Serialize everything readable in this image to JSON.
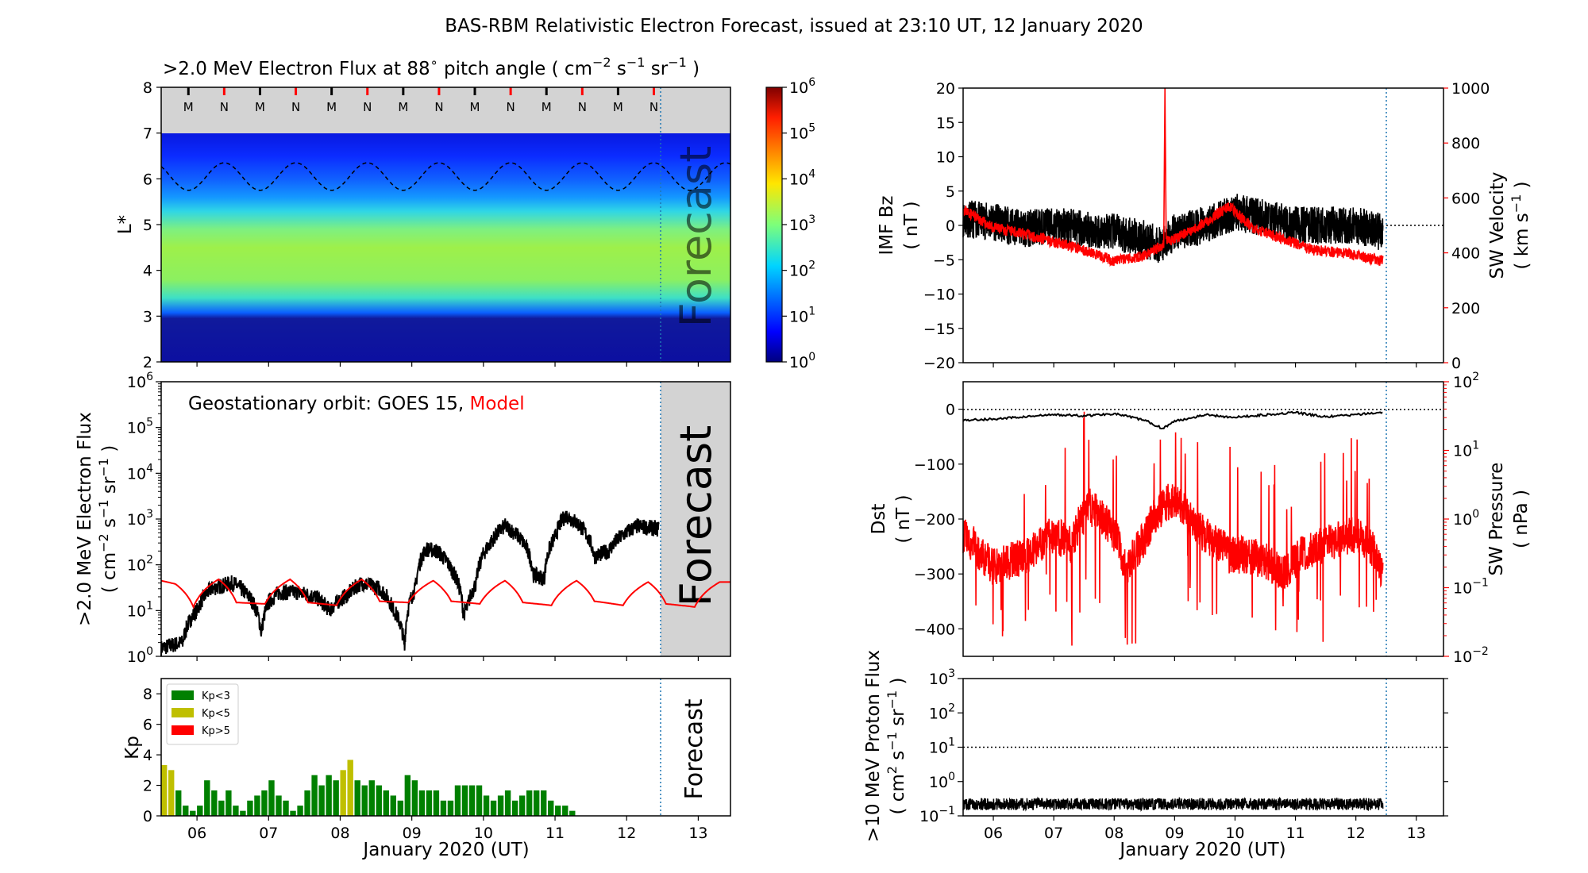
{
  "title": "BAS-RBM Relativistic Electron Forecast, issued at 23:10 UT, 12 January 2020",
  "colors": {
    "red": "#ff0000",
    "black": "#000000",
    "green": "#008000",
    "olive": "#bfbf00",
    "grey": "#d3d3d3",
    "forecast_line": "#1f77b4"
  },
  "x_axis": {
    "day_ticks": [
      "06",
      "07",
      "08",
      "09",
      "10",
      "11",
      "12",
      "13"
    ],
    "xlabel": "January 2020 (UT)",
    "range_days": [
      5.5,
      13.45
    ],
    "forecast_start_day": 12.47
  },
  "chart_data": [
    {
      "type": "heatmap",
      "name": "flux-map",
      "title_prefix": ">2.0 MeV Electron Flux at 88",
      "title_deg": "∘",
      "title_mid": " pitch angle ( cm",
      "title_units": [
        [
          "−2",
          " s"
        ],
        [
          "−1",
          " sr"
        ],
        [
          "−1",
          " )"
        ]
      ],
      "ylabel": "L*",
      "ylim": [
        2,
        8
      ],
      "y_ticks": [
        "2",
        "3",
        "4",
        "5",
        "6",
        "7",
        "8"
      ],
      "colorbar": {
        "scale": "log",
        "range_exp": [
          0,
          6
        ],
        "tick_base": "10",
        "tick_exps": [
          "0",
          "1",
          "2",
          "3",
          "4",
          "5",
          "6"
        ]
      },
      "markers": [
        {
          "day": 5.88,
          "label": "M",
          "color": "black"
        },
        {
          "day": 6.38,
          "label": "N",
          "color": "red"
        },
        {
          "day": 6.88,
          "label": "M",
          "color": "black"
        },
        {
          "day": 7.38,
          "label": "N",
          "color": "red"
        },
        {
          "day": 7.88,
          "label": "M",
          "color": "black"
        },
        {
          "day": 8.38,
          "label": "N",
          "color": "red"
        },
        {
          "day": 8.88,
          "label": "M",
          "color": "black"
        },
        {
          "day": 9.38,
          "label": "N",
          "color": "red"
        },
        {
          "day": 9.88,
          "label": "M",
          "color": "black"
        },
        {
          "day": 10.38,
          "label": "N",
          "color": "red"
        },
        {
          "day": 10.88,
          "label": "M",
          "color": "black"
        },
        {
          "day": 11.38,
          "label": "N",
          "color": "red"
        },
        {
          "day": 11.88,
          "label": "M",
          "color": "black"
        },
        {
          "day": 12.38,
          "label": "N",
          "color": "red"
        }
      ],
      "geo_Lstar_mean": 6.05,
      "geo_Lstar_amplitude": 0.3,
      "outer_belt_edges_L": [
        3.2,
        5.6
      ],
      "grey_region_above_L": 7,
      "forecast_label": "Forecast"
    },
    {
      "type": "line",
      "name": "geo-flux",
      "legend_prefix": "Geostationary orbit:   GOES 15,  ",
      "legend_model": "Model",
      "ylabel_line1": ">2.0 MeV Electron Flux",
      "ylabel_line2_parts": [
        "( cm",
        "−2",
        " s",
        "−1",
        " sr",
        "−1",
        " )"
      ],
      "yscale": "log",
      "ylim_exp": [
        0,
        6
      ],
      "y_tick_base": "10",
      "y_tick_exps": [
        "0",
        "1",
        "2",
        "3",
        "4",
        "5",
        "6"
      ],
      "series": [
        {
          "name": "GOES 15",
          "color": "black",
          "x": [
            5.5,
            5.8,
            6.0,
            6.2,
            6.5,
            6.75,
            6.9,
            7.0,
            7.15,
            7.4,
            7.65,
            7.85,
            8.1,
            8.3,
            8.55,
            8.75,
            8.9,
            9.05,
            9.2,
            9.35,
            9.55,
            9.72,
            9.78,
            9.9,
            10.1,
            10.3,
            10.5,
            10.7,
            10.85,
            11.0,
            11.15,
            11.35,
            11.55,
            11.75,
            11.95,
            12.15,
            12.45
          ],
          "y": [
            1.5,
            2,
            10,
            30,
            40,
            18,
            3,
            15,
            25,
            25,
            20,
            10,
            22,
            40,
            30,
            10,
            1.5,
            30,
            220,
            200,
            80,
            8,
            12,
            40,
            300,
            700,
            400,
            60,
            50,
            400,
            1200,
            700,
            150,
            200,
            450,
            700,
            600
          ]
        },
        {
          "name": "Model",
          "color": "red",
          "x": [
            5.5,
            5.7,
            5.95,
            6.3,
            6.55,
            6.95,
            7.3,
            7.55,
            7.95,
            8.3,
            8.55,
            8.95,
            9.3,
            9.55,
            9.95,
            10.3,
            10.55,
            10.95,
            11.3,
            11.55,
            11.95,
            12.3,
            12.55,
            12.95,
            13.3,
            13.45
          ],
          "y": [
            45,
            38,
            12,
            48,
            15,
            14,
            48,
            15,
            13,
            48,
            16,
            15,
            45,
            16,
            14,
            45,
            15,
            13,
            45,
            16,
            13,
            42,
            14,
            12,
            42,
            42
          ]
        }
      ],
      "forecast_label": "Forecast"
    },
    {
      "type": "bar",
      "name": "kp-index",
      "ylabel": "Kp",
      "ylim": [
        0,
        9
      ],
      "y_ticks": [
        0,
        2,
        4,
        6,
        8
      ],
      "legend": [
        {
          "label": "Kp<3",
          "color": "green"
        },
        {
          "label": "Kp<5",
          "color": "olive"
        },
        {
          "label": "Kp>5",
          "color": "red"
        }
      ],
      "bar_width_days": 0.1,
      "start_day": 5.5,
      "values": [
        3.33,
        3.0,
        1.67,
        0.67,
        0.33,
        0.67,
        2.33,
        1.67,
        1.0,
        1.67,
        0.67,
        0.33,
        1.0,
        1.33,
        1.67,
        2.33,
        1.33,
        1.0,
        0.33,
        0.67,
        1.67,
        2.67,
        2.0,
        2.67,
        2.33,
        3.0,
        3.67,
        2.33,
        2.0,
        2.33,
        2.0,
        1.67,
        1.33,
        1.0,
        2.67,
        2.33,
        1.67,
        1.67,
        1.67,
        1.0,
        1.0,
        2.0,
        2.0,
        2.0,
        2.0,
        1.33,
        1.0,
        1.33,
        1.67,
        1.0,
        1.33,
        1.67,
        1.67,
        1.67,
        1.0,
        0.67,
        0.67,
        0.33
      ],
      "forecast_label": "Forecast"
    },
    {
      "type": "line",
      "name": "imf-sw-velocity",
      "ylabel_left_line1": "IMF Bz",
      "ylabel_left_line2": "( nT )",
      "ylim_left": [
        -20,
        20
      ],
      "y_ticks_left": [
        "20",
        "15",
        "10",
        "5",
        "0",
        "−5",
        "−10",
        "−15",
        "−20"
      ],
      "ylabel_right_line1": "SW Velocity",
      "ylabel_right_line2_parts": [
        "( km s",
        "−1",
        " )"
      ],
      "ylim_right": [
        0,
        1000
      ],
      "y_ticks_right": [
        "1000",
        "800",
        "600",
        "400",
        "200",
        "0"
      ],
      "series": [
        {
          "name": "IMF Bz",
          "color": "black",
          "axis": "left",
          "x": [
            5.5,
            6.0,
            6.5,
            7.0,
            7.5,
            8.0,
            8.5,
            8.8,
            9.0,
            9.5,
            10.0,
            10.5,
            11.0,
            11.5,
            12.0,
            12.45
          ],
          "y": [
            1,
            0.5,
            -0.5,
            0,
            -0.5,
            -1,
            -2,
            -3,
            -1,
            0,
            2,
            1,
            0,
            0,
            0,
            -1
          ]
        },
        {
          "name": "SW Velocity",
          "color": "red",
          "axis": "right",
          "x": [
            5.5,
            6.0,
            6.5,
            7.0,
            7.5,
            8.0,
            8.5,
            8.82,
            8.84,
            8.86,
            9.0,
            9.5,
            9.9,
            10.3,
            10.8,
            11.3,
            11.8,
            12.45
          ],
          "y": [
            560,
            490,
            470,
            440,
            410,
            370,
            390,
            430,
            1000,
            440,
            450,
            510,
            570,
            490,
            450,
            410,
            400,
            370
          ]
        }
      ],
      "dotted_zero_after_forecast": true
    },
    {
      "type": "line",
      "name": "dst-sw-pressure",
      "ylabel_left_line1": "Dst",
      "ylabel_left_line2": "( nT )",
      "ylim_left": [
        -450,
        50
      ],
      "y_ticks_left": [
        "0",
        "−100",
        "−200",
        "−300",
        "−400"
      ],
      "ylabel_right_line1": "SW Pressure",
      "ylabel_right_line2": "( nPa )",
      "y_right_scale": "log",
      "ylim_right_exp": [
        -2,
        2
      ],
      "y_right_tick_base": "10",
      "y_right_tick_exps": [
        "2",
        "1",
        "0",
        "−1",
        "−2"
      ],
      "series": [
        {
          "name": "Dst",
          "color": "black",
          "axis": "left",
          "x": [
            5.5,
            6.0,
            6.5,
            7.0,
            7.5,
            8.0,
            8.5,
            8.8,
            9.0,
            9.5,
            10.0,
            10.5,
            11.0,
            11.5,
            12.0,
            12.45
          ],
          "y": [
            -20,
            -18,
            -14,
            -10,
            -12,
            -8,
            -20,
            -35,
            -22,
            -10,
            -15,
            -10,
            -6,
            -14,
            -10,
            -6
          ]
        },
        {
          "name": "SW Pressure",
          "color": "red",
          "axis": "right",
          "x": [
            5.5,
            5.8,
            6.0,
            6.3,
            6.6,
            7.0,
            7.3,
            7.6,
            7.9,
            8.2,
            8.5,
            8.8,
            9.0,
            9.3,
            9.6,
            9.9,
            10.2,
            10.5,
            10.8,
            11.1,
            11.4,
            11.7,
            12.0,
            12.3,
            12.45
          ],
          "y": [
            0.6,
            0.3,
            0.2,
            0.25,
            0.3,
            0.6,
            0.4,
            1.5,
            0.8,
            0.15,
            0.5,
            1.5,
            2.0,
            0.8,
            0.5,
            0.3,
            0.3,
            0.25,
            0.15,
            0.3,
            0.4,
            0.5,
            0.6,
            0.35,
            0.15
          ]
        }
      ]
    },
    {
      "type": "line",
      "name": "proton-flux",
      "ylabel_line1": ">10 MeV Proton Flux",
      "ylabel_line2_parts": [
        "( cm",
        "2",
        " s",
        "−1",
        " sr",
        "−1",
        " )"
      ],
      "yscale": "log",
      "ylim_exp": [
        -1,
        3
      ],
      "y_tick_base": "10",
      "y_tick_exps": [
        "3",
        "2",
        "1",
        "0",
        "−1"
      ],
      "threshold": 10,
      "series": [
        {
          "name": "Protons",
          "color": "black",
          "x": [
            5.5,
            12.45
          ],
          "y": [
            0.22,
            0.22
          ]
        }
      ]
    }
  ]
}
